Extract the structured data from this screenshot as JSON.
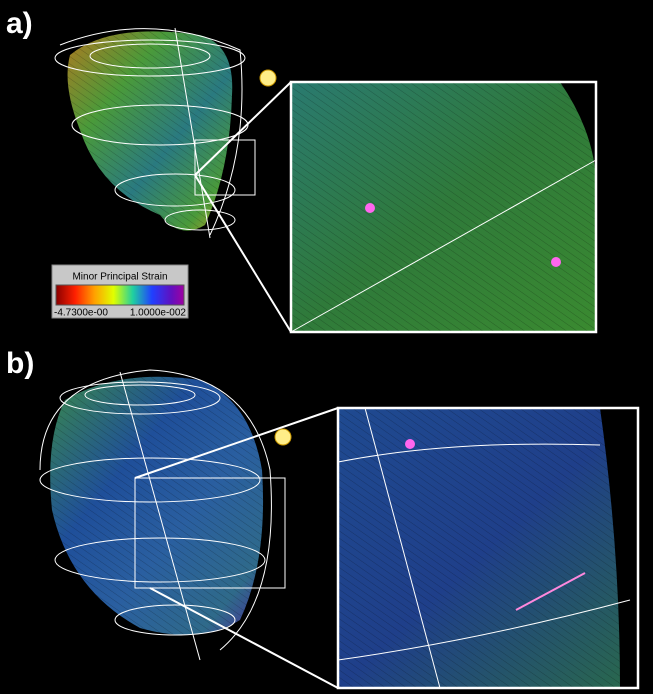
{
  "panels": [
    {
      "label": "a)"
    },
    {
      "label": "b)"
    }
  ],
  "colorbar": {
    "title": "Minor Principal Strain",
    "min_label": "-4.7300e-00",
    "max_label": "1.0000e-002"
  }
}
